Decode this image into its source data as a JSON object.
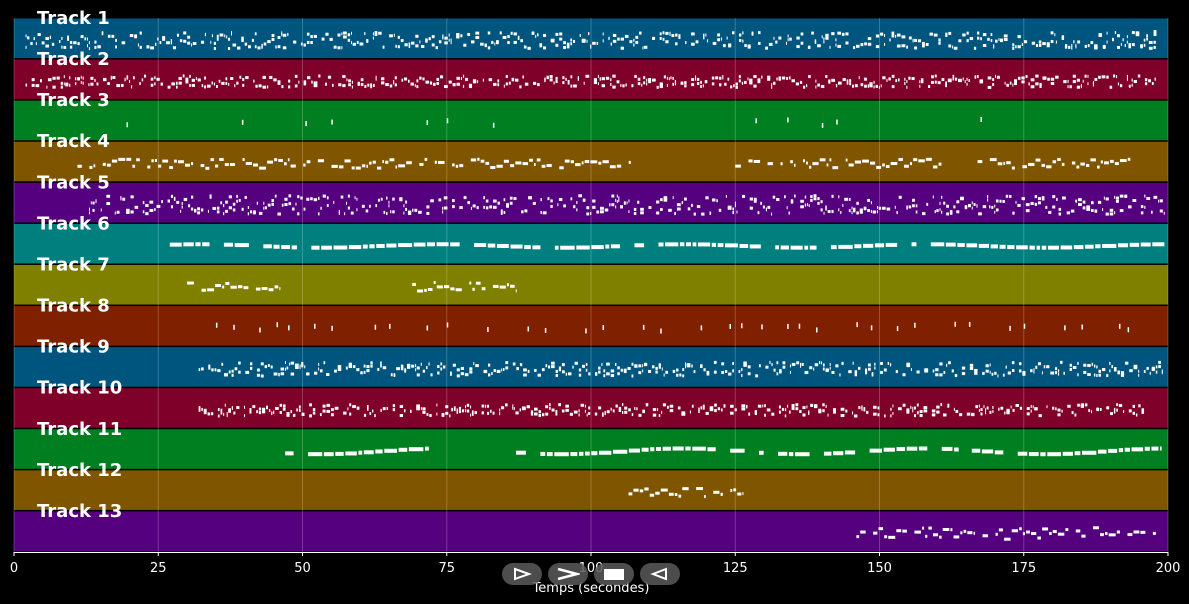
{
  "chart_data": {
    "type": "piano-roll",
    "xlabel": "Temps (secondes)",
    "xlim": [
      0,
      200
    ],
    "xticks": [
      0,
      25,
      50,
      75,
      100,
      125,
      150,
      175,
      200
    ],
    "grid": true,
    "tracks": [
      {
        "name": "Track 1",
        "color": "#00557f",
        "active": [
          2,
          198
        ],
        "density": "dense",
        "pitch_spread": 0.7,
        "extra": [
          [
            197.5,
            198
          ]
        ]
      },
      {
        "name": "Track 2",
        "color": "#7f0028",
        "active": [
          2,
          198
        ],
        "density": "dense",
        "pitch_spread": 0.5
      },
      {
        "name": "Track 3",
        "color": "#007f20",
        "active": [
          19,
          170
        ],
        "density": "sparse-ticks",
        "pitch_spread": 0.6,
        "notes": [
          19.5,
          39.5,
          50.5,
          55,
          71.5,
          75,
          83,
          128.5,
          134,
          140,
          142.5,
          167.5
        ]
      },
      {
        "name": "Track 4",
        "color": "#7f5500",
        "active": [
          11,
          194
        ],
        "density": "medium",
        "pitch_spread": 0.4,
        "segments": [
          [
            11,
            107
          ],
          [
            125,
            162
          ],
          [
            167,
            194
          ]
        ]
      },
      {
        "name": "Track 5",
        "color": "#55007f",
        "active": [
          13,
          199.5
        ],
        "density": "dense",
        "pitch_spread": 0.8
      },
      {
        "name": "Track 6",
        "color": "#007f7f",
        "active": [
          27,
          199.5
        ],
        "density": "sustained",
        "pitch_spread": 0.3
      },
      {
        "name": "Track 7",
        "color": "#7f7f00",
        "active": [
          30,
          87
        ],
        "density": "medium",
        "pitch_spread": 0.4,
        "segments": [
          [
            30,
            46
          ],
          [
            69,
            87
          ]
        ]
      },
      {
        "name": "Track 8",
        "color": "#7f2000",
        "active": [
          35,
          193
        ],
        "density": "sparse-ticks",
        "pitch_spread": 0.6,
        "notes": [
          35,
          38,
          42.5,
          45.5,
          47.5,
          52,
          55,
          62.5,
          65,
          71.5,
          75,
          82,
          89,
          92,
          99,
          102,
          109,
          112,
          119,
          124,
          126,
          129.5,
          134,
          136,
          139,
          146,
          148.5,
          153,
          156,
          163,
          165.5,
          172.5,
          175,
          182,
          185,
          191.5,
          193
        ]
      },
      {
        "name": "Track 9",
        "color": "#00557f",
        "active": [
          32,
          199
        ],
        "density": "dense",
        "pitch_spread": 0.6
      },
      {
        "name": "Track 10",
        "color": "#7f0028",
        "active": [
          32,
          196
        ],
        "density": "dense",
        "pitch_spread": 0.5
      },
      {
        "name": "Track 11",
        "color": "#007f20",
        "active": [
          47,
          199
        ],
        "density": "sustained",
        "pitch_spread": 0.5,
        "segments": [
          [
            47,
            72
          ],
          [
            87,
            166
          ],
          [
            166,
            199
          ]
        ]
      },
      {
        "name": "Track 12",
        "color": "#7f5500",
        "active": [
          106.5,
          126.5
        ],
        "density": "medium",
        "pitch_spread": 0.4
      },
      {
        "name": "Track 13",
        "color": "#55007f",
        "active": [
          146,
          198
        ],
        "density": "medium",
        "pitch_spread": 0.5
      }
    ]
  },
  "controls": [
    {
      "label": "rewind",
      "icon": "rewind-icon"
    },
    {
      "label": "play",
      "icon": "play-icon"
    },
    {
      "label": "stop",
      "icon": "stop-icon"
    },
    {
      "label": "back",
      "icon": "back-icon"
    }
  ]
}
